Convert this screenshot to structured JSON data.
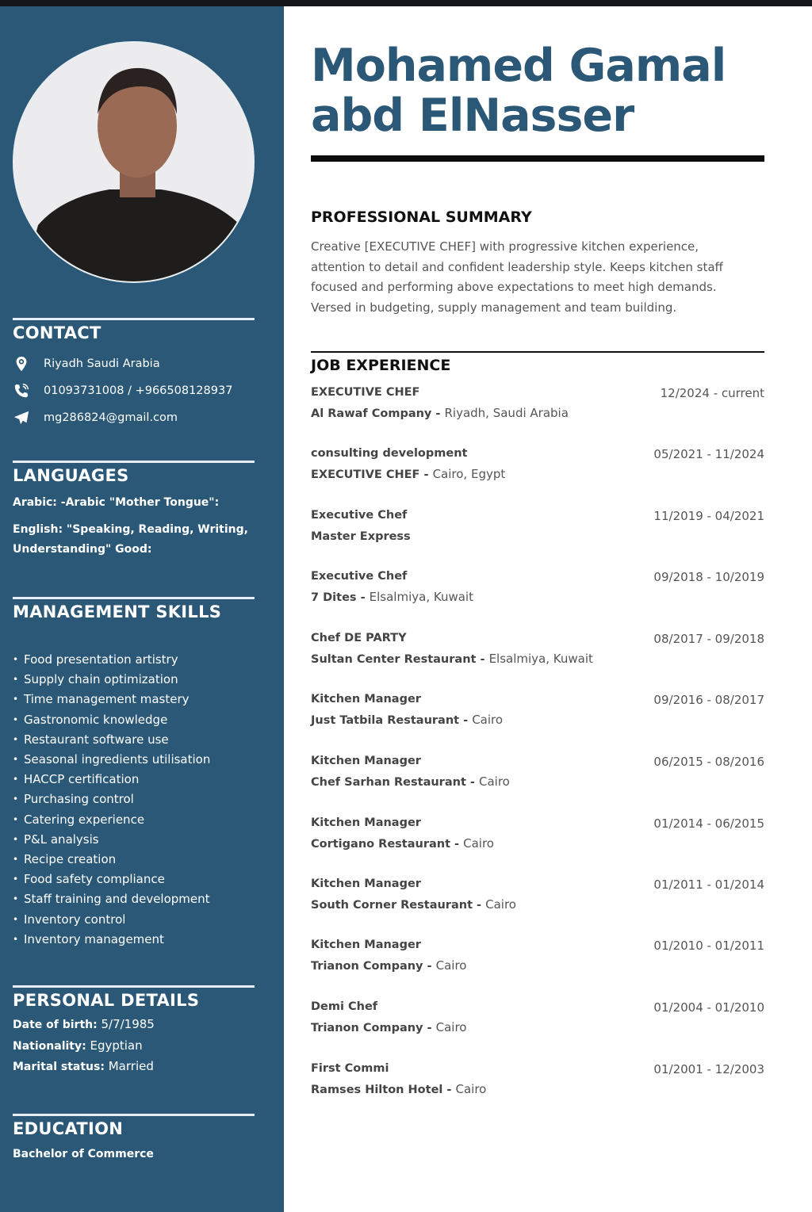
{
  "name": {
    "line1": "Mohamed Gamal",
    "line2": "abd ElNasser"
  },
  "colors": {
    "sidebar": "#2b5877",
    "accent": "#2b5877"
  },
  "contact": {
    "title": "CONTACT",
    "items": [
      {
        "icon": "location-pin-icon",
        "text": "Riyadh Saudi Arabia"
      },
      {
        "icon": "phone-icon",
        "text": "01093731008 / +966508128937"
      },
      {
        "icon": "paper-plane-icon",
        "text": "mg286824@gmail.com"
      }
    ]
  },
  "languages": {
    "title": "LANGUAGES",
    "items": [
      "Arabic: -Arabic \"Mother Tongue\":",
      "English: \"Speaking, Reading, Writing, Understanding\" Good:"
    ]
  },
  "skills": {
    "title": "MANAGEMENT SKILLS",
    "items": [
      "Food presentation artistry",
      "Supply chain optimization",
      "Time management mastery",
      "Gastronomic knowledge",
      "Restaurant software use",
      "Seasonal ingredients utilisation",
      "HACCP certification",
      "Purchasing control",
      "Catering experience",
      "P&L analysis",
      "Recipe creation",
      "Food safety compliance",
      "Staff training and development",
      "Inventory control",
      "Inventory management"
    ]
  },
  "personal": {
    "title": "PERSONAL DETAILS",
    "items": [
      {
        "label": "Date of birth:",
        "value": " 5/7/1985"
      },
      {
        "label": "Nationality:",
        "value": " Egyptian"
      },
      {
        "label": "Marital status:",
        "value": " Married"
      }
    ]
  },
  "education": {
    "title": "EDUCATION",
    "degree": "Bachelor of Commerce"
  },
  "summary": {
    "title": "PROFESSIONAL SUMMARY",
    "text": "Creative [EXECUTIVE CHEF] with progressive kitchen experience, attention to detail and confident leadership style. Keeps kitchen staff focused and performing above expectations to meet high demands. Versed in budgeting, supply management and team building."
  },
  "experience": {
    "title": "JOB EXPERIENCE",
    "jobs": [
      {
        "title": "EXECUTIVE CHEF",
        "dates": "12/2024 - current",
        "company": "Al Rawaf Company - ",
        "location": "Riyadh, Saudi Arabia"
      },
      {
        "title": "consulting development",
        "dates": "05/2021 - 11/2024",
        "company": "EXECUTIVE CHEF - ",
        "location": "Cairo, Egypt"
      },
      {
        "title": "Executive Chef",
        "dates": "11/2019 - 04/2021",
        "company": "Master Express",
        "location": ""
      },
      {
        "title": "Executive Chef",
        "dates": "09/2018 - 10/2019",
        "company": "7 Dites - ",
        "location": "Elsalmiya, Kuwait"
      },
      {
        "title": "Chef DE PARTY",
        "dates": "08/2017 - 09/2018",
        "company": "Sultan Center Restaurant - ",
        "location": "Elsalmiya, Kuwait"
      },
      {
        "title": "Kitchen Manager",
        "dates": "09/2016 - 08/2017",
        "company": "Just Tatbila Restaurant - ",
        "location": "Cairo"
      },
      {
        "title": "Kitchen Manager",
        "dates": "06/2015 - 08/2016",
        "company": "Chef Sarhan Restaurant - ",
        "location": "Cairo"
      },
      {
        "title": "Kitchen Manager",
        "dates": "01/2014 - 06/2015",
        "company": "Cortigano Restaurant - ",
        "location": "Cairo"
      },
      {
        "title": "Kitchen Manager",
        "dates": "01/2011 - 01/2014",
        "company": "South Corner Restaurant - ",
        "location": "Cairo"
      },
      {
        "title": "Kitchen Manager",
        "dates": "01/2010 - 01/2011",
        "company": "Trianon Company - ",
        "location": "Cairo"
      },
      {
        "title": "Demi Chef",
        "dates": "01/2004 - 01/2010",
        "company": "Trianon Company - ",
        "location": "Cairo"
      },
      {
        "title": "First Commi",
        "dates": "01/2001 - 12/2003",
        "company": "Ramses Hilton Hotel - ",
        "location": "Cairo"
      }
    ]
  }
}
